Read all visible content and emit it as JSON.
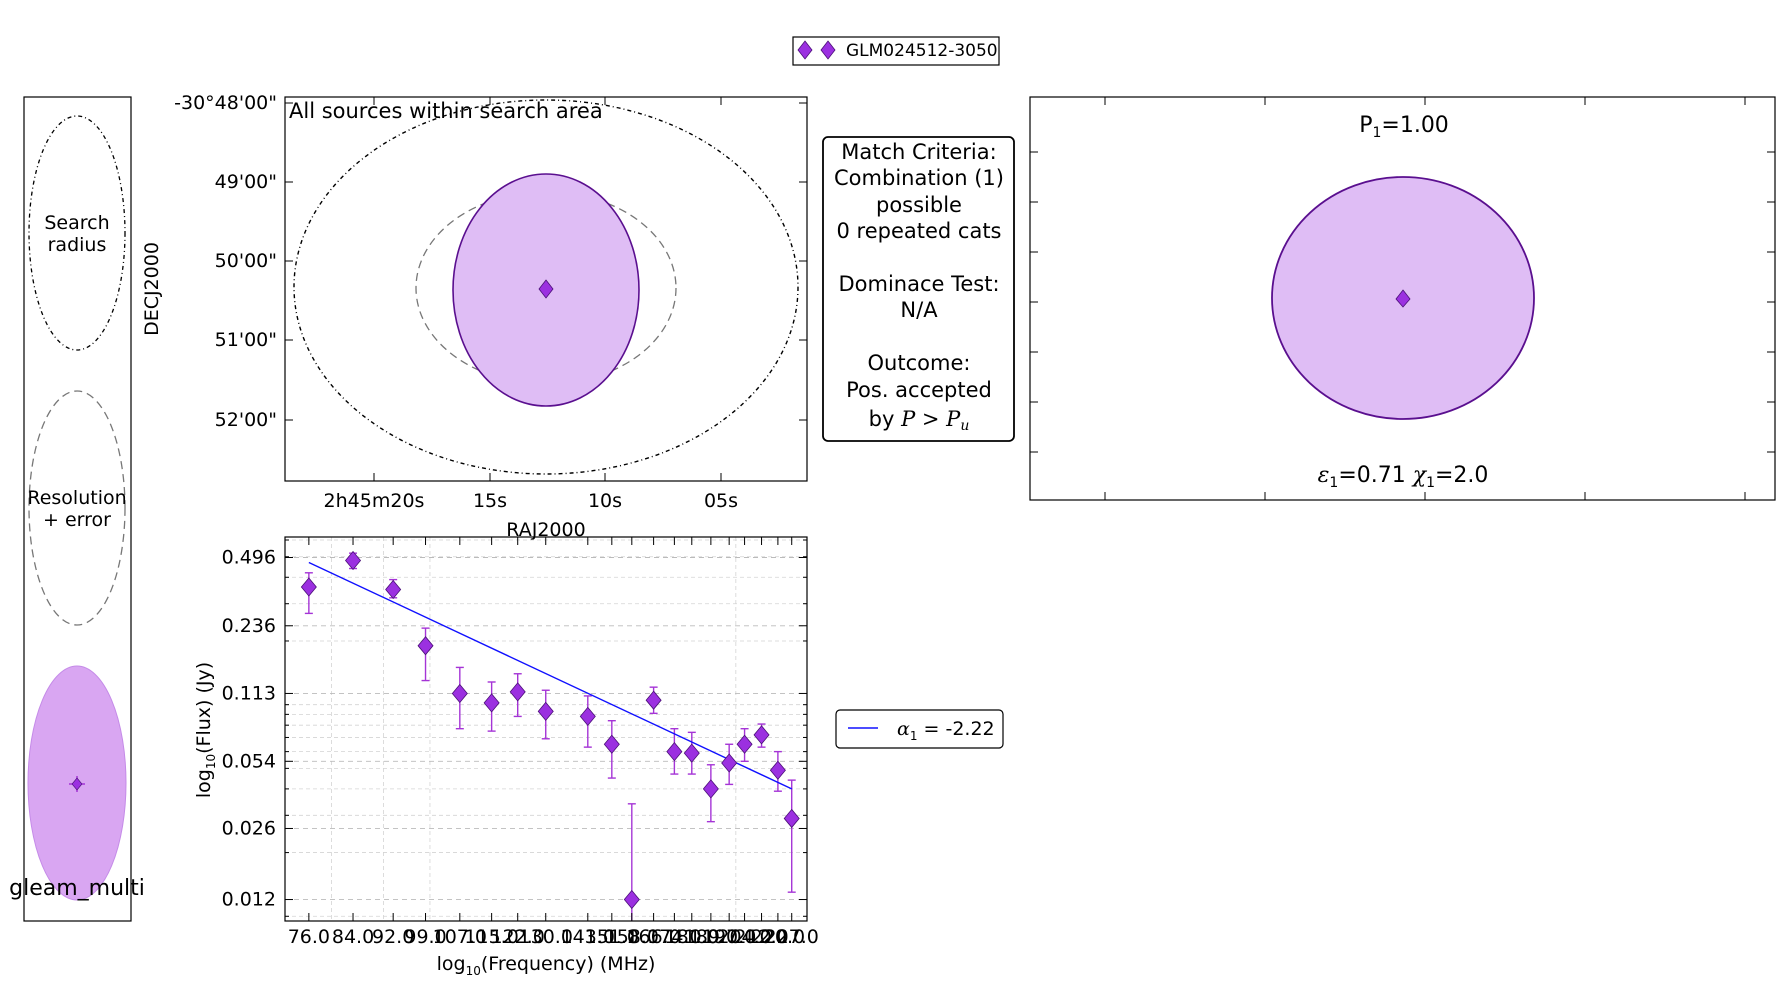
{
  "colors": {
    "source": "#9b30e0",
    "source_edge": "#4b1078",
    "ellipse_fill": "#dfbdf5",
    "ellipse_edge": "#5a0f8f",
    "legend_fill": "#d9a6f2",
    "fit_line": "#1010ff",
    "error_bar": "#a534d6"
  },
  "top_legend": {
    "label": "GLM024512-3050",
    "icon": "diamond-marker-icon"
  },
  "left_key": {
    "search_label_1": "Search",
    "search_label_2": "radius",
    "res_label_1": "Resolution",
    "res_label_2": "+ error",
    "catalog": "gleam_multi"
  },
  "match_box": {
    "line1": "Match Criteria:",
    "line2": "Combination (1)",
    "line3": "possible",
    "line4": "0 repeated cats",
    "line5": "Dominace Test:",
    "line6": "N/A",
    "line7": "Outcome:",
    "line8": "Pos. accepted",
    "line9_prefix": "by ",
    "line9_p": "P",
    "line9_gt": " > ",
    "line9_pu": "P",
    "line9_u": "u"
  },
  "right_panel": {
    "p_label": "P",
    "p_sub": "1",
    "p_value": "=1.00",
    "eps_sym": "ε",
    "eps_sub": "1",
    "eps_value": "=0.71",
    "chi_sym": "χ",
    "chi_sub": "1",
    "chi_value": "=2.0"
  },
  "sed_legend": {
    "alpha": "α",
    "alpha_sub": "1",
    "value": " = -2.22"
  },
  "chart_data": [
    {
      "type": "scatter",
      "title": "All sources within search area",
      "xlabel": "RAJ2000",
      "ylabel": "DECJ2000",
      "x_ticks": [
        "2h45m20s",
        "15s",
        "10s",
        "05s"
      ],
      "y_ticks": [
        "-30°48'00\"",
        "49'00\"",
        "50'00\"",
        "51'00\"",
        "52'00\""
      ],
      "points": [
        {
          "ra": "02h45m12.7s",
          "dec": "-30°50'20\""
        }
      ]
    },
    {
      "type": "scatter",
      "xlabel_prefix": "log",
      "xlabel_sub": "10",
      "xlabel_suffix": "(Frequency) (MHz)",
      "ylabel_prefix": "log",
      "ylabel_sub": "10",
      "ylabel_suffix": "(Flux) (Jy)",
      "log_x": true,
      "log_y": true,
      "grid": true,
      "xlim": [
        72,
        235
      ],
      "ylim": [
        0.0095,
        0.62
      ],
      "y_ticks": [
        0.496,
        0.236,
        0.113,
        0.054,
        0.026,
        0.012
      ],
      "y_tick_labels": [
        "0.496",
        "0.236",
        "0.113",
        "0.054",
        "0.026",
        "0.012"
      ],
      "x_ticks": [
        76,
        84,
        92,
        99,
        107,
        115,
        122,
        130,
        143,
        151,
        158,
        166,
        174,
        181,
        189,
        197,
        204,
        212,
        220,
        227
      ],
      "x_tick_labels": [
        "76.0",
        "84.0",
        "92.0",
        "99.0",
        "107.0",
        "115.0",
        "122.0",
        "130.0",
        "143.0",
        "151.0",
        "158.0",
        "166.0",
        "174.0",
        "181.0",
        "189.0",
        "197.0",
        "204.0",
        "212.0",
        "220.0",
        "227.0"
      ],
      "series": [
        {
          "x": [
            76,
            84,
            92,
            99,
            107,
            115,
            122,
            130,
            143,
            151,
            158,
            166,
            174,
            181,
            189,
            197,
            204,
            212,
            220,
            227
          ],
          "y": [
            0.36,
            0.48,
            0.35,
            0.19,
            0.113,
            0.102,
            0.115,
            0.093,
            0.088,
            0.065,
            0.012,
            0.105,
            0.06,
            0.059,
            0.04,
            0.053,
            0.065,
            0.072,
            0.049,
            0.029
          ],
          "y_low": [
            0.27,
            0.44,
            0.32,
            0.13,
            0.077,
            0.075,
            0.088,
            0.069,
            0.063,
            0.045,
            0.0095,
            0.091,
            0.047,
            0.047,
            0.028,
            0.042,
            0.054,
            0.063,
            0.039,
            0.013
          ],
          "y_high": [
            0.42,
            0.52,
            0.39,
            0.23,
            0.15,
            0.128,
            0.14,
            0.117,
            0.11,
            0.084,
            0.034,
            0.121,
            0.077,
            0.074,
            0.052,
            0.065,
            0.077,
            0.081,
            0.06,
            0.044
          ]
        }
      ],
      "fit": {
        "x": [
          76,
          227
        ],
        "y": [
          0.47,
          0.04
        ]
      }
    }
  ]
}
